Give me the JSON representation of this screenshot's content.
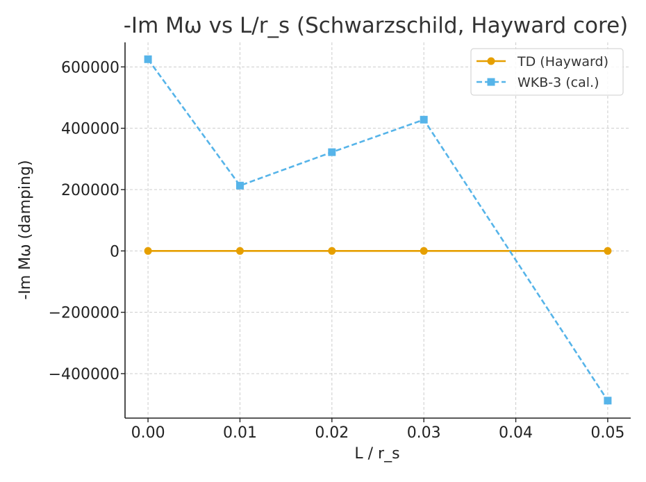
{
  "chart_data": {
    "type": "line",
    "title": "-Im Mω vs L/r_s (Schwarzschild, Hayward core)",
    "xlabel": "L / r_s",
    "ylabel": "-Im Mω (damping)",
    "xlim": [
      -0.0025,
      0.0525
    ],
    "ylim": [
      -545000,
      680000
    ],
    "x_ticks": [
      0.0,
      0.01,
      0.02,
      0.03,
      0.04,
      0.05
    ],
    "x_tick_labels": [
      "0.00",
      "0.01",
      "0.02",
      "0.03",
      "0.04",
      "0.05"
    ],
    "y_ticks": [
      600000,
      400000,
      200000,
      0,
      -200000,
      -400000
    ],
    "y_tick_labels": [
      "600000",
      "400000",
      "200000",
      "0",
      "−200000",
      "−400000"
    ],
    "grid": true,
    "legend_position": "top-right",
    "series": [
      {
        "name": "TD (Hayward)",
        "color": "#E69F00",
        "line_style": "solid",
        "marker": "circle",
        "x": [
          0.0,
          0.01,
          0.02,
          0.03,
          0.05
        ],
        "y": [
          0,
          0,
          0,
          0,
          0
        ]
      },
      {
        "name": "WKB-3 (cal.)",
        "color": "#56B4E9",
        "line_style": "dashed",
        "marker": "square",
        "x": [
          0.0,
          0.01,
          0.02,
          0.03,
          0.05
        ],
        "y": [
          625000,
          213000,
          322000,
          428000,
          -488000
        ]
      }
    ]
  }
}
